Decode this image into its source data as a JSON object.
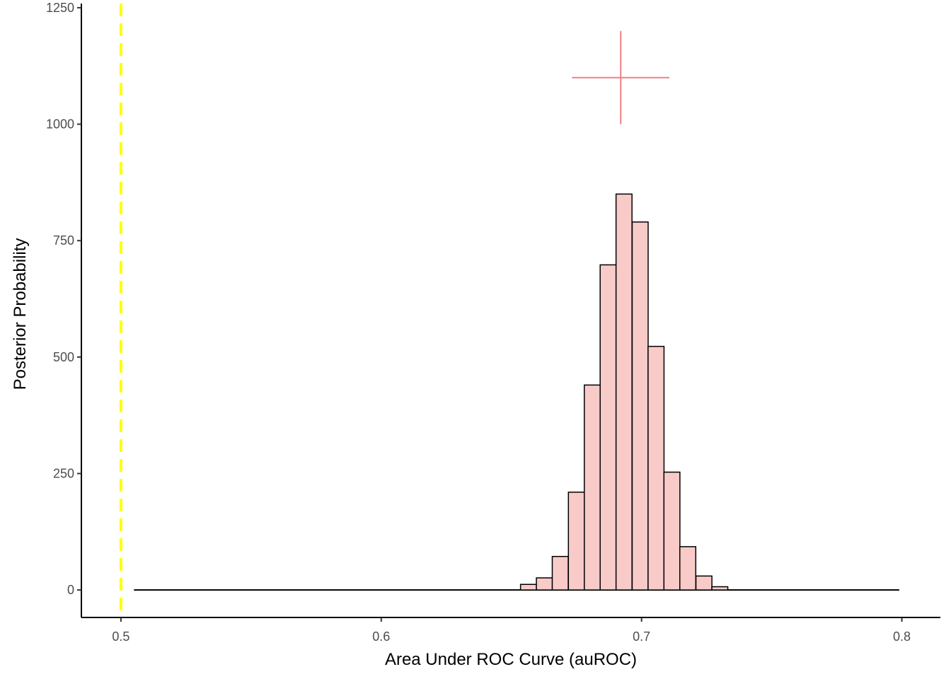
{
  "chart_data": {
    "type": "bar",
    "xlabel": "Area Under ROC Curve (auROC)",
    "ylabel": "Posterior Probability",
    "xlim": [
      0.4848,
      0.8148
    ],
    "ylim": [
      -59,
      1259
    ],
    "x_ticks": [
      {
        "value": 0.5,
        "label": "0.5"
      },
      {
        "value": 0.6,
        "label": "0.6"
      },
      {
        "value": 0.7,
        "label": "0.7"
      },
      {
        "value": 0.8,
        "label": "0.8"
      }
    ],
    "y_ticks": [
      {
        "value": 0,
        "label": "0"
      },
      {
        "value": 250,
        "label": "250"
      },
      {
        "value": 500,
        "label": "500"
      },
      {
        "value": 750,
        "label": "750"
      },
      {
        "value": 1000,
        "label": "1000"
      },
      {
        "value": 1250,
        "label": "1250"
      }
    ],
    "histogram": {
      "bin_width": 0.00613,
      "bins": [
        {
          "x0": 0.6535,
          "count": 12
        },
        {
          "x0": 0.6596,
          "count": 26
        },
        {
          "x0": 0.6657,
          "count": 72
        },
        {
          "x0": 0.6719,
          "count": 210
        },
        {
          "x0": 0.678,
          "count": 440
        },
        {
          "x0": 0.6841,
          "count": 698
        },
        {
          "x0": 0.6902,
          "count": 850
        },
        {
          "x0": 0.6964,
          "count": 790
        },
        {
          "x0": 0.7025,
          "count": 523
        },
        {
          "x0": 0.7086,
          "count": 253
        },
        {
          "x0": 0.7147,
          "count": 93
        },
        {
          "x0": 0.7209,
          "count": 30
        },
        {
          "x0": 0.727,
          "count": 7
        }
      ],
      "fill": "#f8cbc8",
      "stroke": "#000000"
    },
    "baseline": {
      "x_start": 0.505,
      "x_end": 0.799,
      "y": 0
    },
    "reference_line": {
      "x": 0.5,
      "color": "#ffff00",
      "style": "dashed"
    },
    "crosshair": {
      "x": 0.692,
      "y": 1100,
      "x_range": [
        0.6733,
        0.7107
      ],
      "y_range": [
        1000,
        1200
      ],
      "color": "#f08080"
    }
  }
}
